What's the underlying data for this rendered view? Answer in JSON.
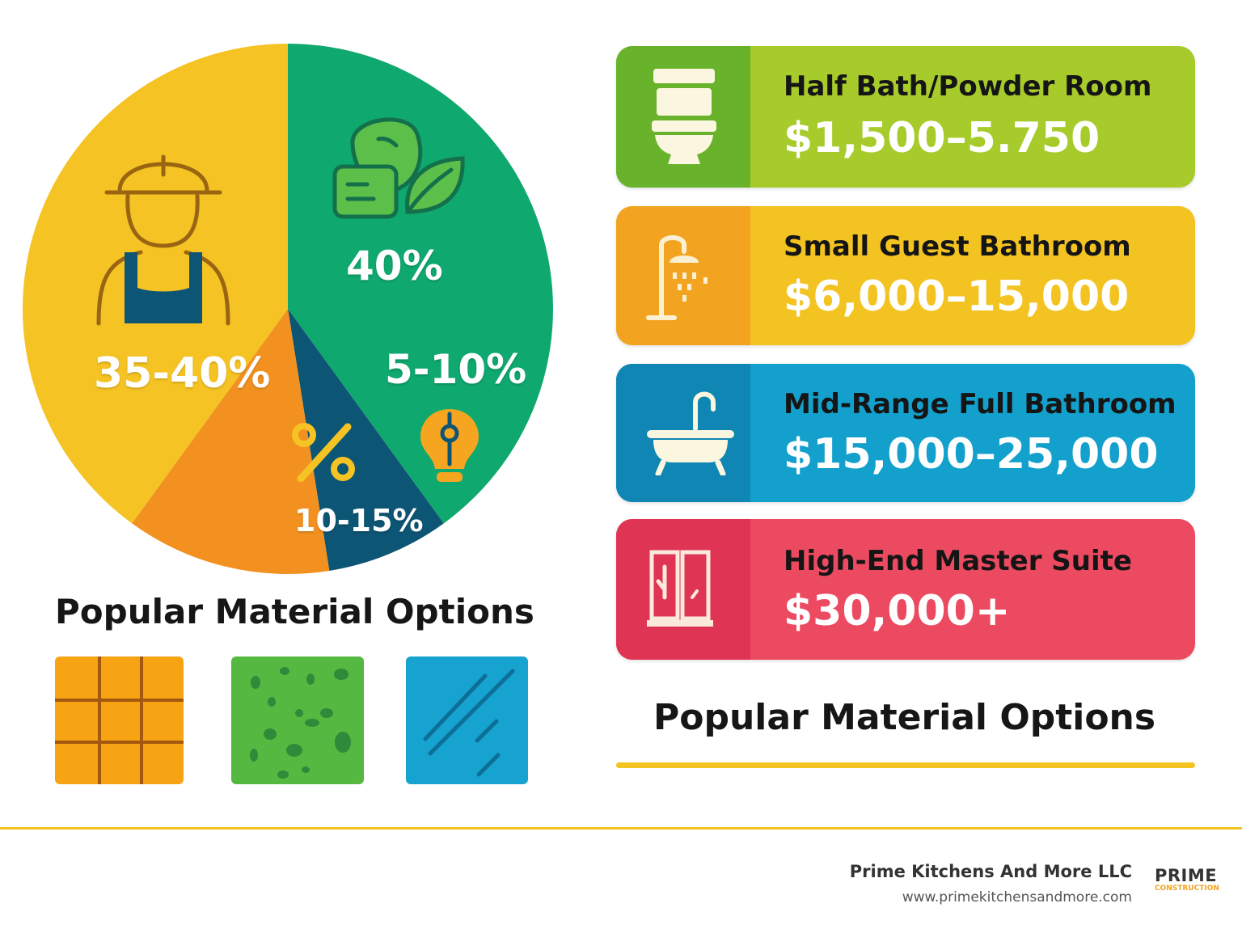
{
  "pie": {
    "type": "pie",
    "slices": [
      {
        "label": "40%",
        "value": 40,
        "color": "#0fa86e",
        "icon": "leaf-materials-icon"
      },
      {
        "label": "5-10%",
        "value": 7.5,
        "color": "#0d5574",
        "icon": "lightbulb-icon"
      },
      {
        "label": "10-15%",
        "value": 12.5,
        "color": "#f2911f",
        "icon": "percent-icon"
      },
      {
        "label": "35-40%",
        "value": 40,
        "color": "#f5c323",
        "icon": "construction-worker-icon"
      }
    ]
  },
  "materials": {
    "title": "Popular Material Options",
    "swatches": [
      {
        "name": "tile",
        "color": "#f6a314"
      },
      {
        "name": "stone",
        "color": "#55b840"
      },
      {
        "name": "glass",
        "color": "#16a3cf"
      }
    ]
  },
  "costs": [
    {
      "label": "Half Bath/Powder Room",
      "price": "$1,500–5.750",
      "icon": "toilet-icon",
      "color": "#a6cb2a"
    },
    {
      "label": "Small Guest Bathroom",
      "price": "$6,000–15,000",
      "icon": "shower-icon",
      "color": "#f3c321"
    },
    {
      "label": "Mid-Range Full Bathroom",
      "price": "$15,000–25,000",
      "icon": "bathtub-icon",
      "color": "#13a0cc"
    },
    {
      "label": "High-End Master Suite",
      "price": "$30,000+",
      "icon": "shower-door-icon",
      "color": "#ec4a60"
    }
  ],
  "right_title": "Popular Material Options",
  "footer": {
    "company": "Prime Kitchens And More LLC",
    "website": "www.primekitchensandmore.com",
    "logo_top": "PRIME",
    "logo_bottom": "CONSTRUCTION"
  }
}
